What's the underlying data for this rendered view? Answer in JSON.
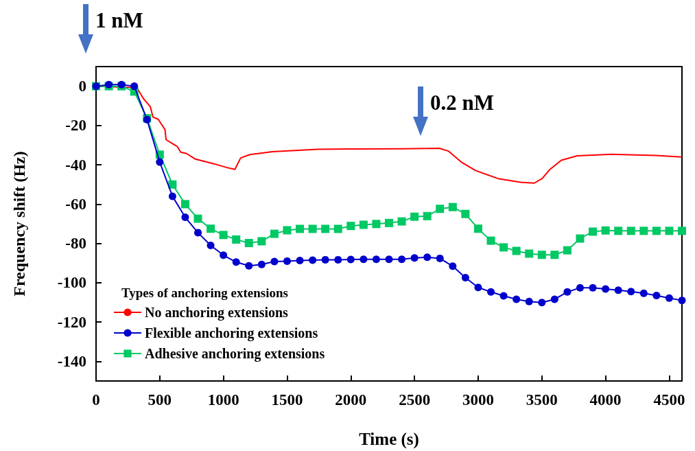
{
  "chart_data": {
    "type": "line",
    "xlabel": "Time (s)",
    "ylabel": "Frequency shift (Hz)",
    "legend_title": "Types of anchoring extensions",
    "legend": "bottom left",
    "xlim": [
      0,
      4600
    ],
    "xticks": [
      0,
      500,
      1000,
      1500,
      2000,
      2500,
      3000,
      3500,
      4000,
      4500
    ],
    "ylim": [
      -150,
      10
    ],
    "yticks": [
      -140,
      -120,
      -100,
      -80,
      -60,
      -40,
      -20,
      0
    ],
    "annotations": [
      "1 nM",
      "0.2 nM"
    ],
    "series": [
      {
        "name": "No anchoring extensions",
        "color": "#ff0000",
        "marker": "none",
        "x": [
          0,
          200,
          319,
          372,
          426,
          447,
          488,
          541,
          550,
          638,
          665,
          709,
          780,
          922,
          1028,
          1090,
          1135,
          1206,
          1383,
          1738,
          2021,
          2400,
          2695,
          2766,
          2872,
          2979,
          3156,
          3333,
          3440,
          3502,
          3564,
          3652,
          3777,
          4043,
          4397,
          4600
        ],
        "values": [
          0,
          -0.5,
          -0.6,
          -6.3,
          -10.4,
          -15.7,
          -16.8,
          -22,
          -27.2,
          -30.7,
          -33.6,
          -34.2,
          -37.1,
          -39.4,
          -41.4,
          -42.3,
          -36.5,
          -34.8,
          -33.3,
          -32.1,
          -31.9,
          -31.8,
          -31.6,
          -33,
          -38.8,
          -42.9,
          -47,
          -48.9,
          -49.3,
          -47,
          -42.3,
          -37.7,
          -35.4,
          -34.6,
          -35.2,
          -36
        ]
      },
      {
        "name": "Flexible anchoring extensions",
        "color": "#0000cc",
        "marker": "circle",
        "x": [
          0,
          100,
          200,
          300,
          400,
          500,
          600,
          700,
          800,
          900,
          1000,
          1100,
          1200,
          1300,
          1400,
          1500,
          1600,
          1700,
          1800,
          1900,
          2000,
          2100,
          2200,
          2300,
          2400,
          2500,
          2600,
          2700,
          2800,
          2900,
          3000,
          3100,
          3200,
          3300,
          3400,
          3500,
          3600,
          3700,
          3800,
          3900,
          4000,
          4100,
          4200,
          4300,
          4400,
          4500,
          4600
        ],
        "values": [
          0,
          0.8,
          0.8,
          0,
          -17,
          -38.6,
          -56,
          -66.7,
          -74.5,
          -81,
          -86,
          -89.5,
          -91.4,
          -90.7,
          -89.2,
          -89,
          -88.7,
          -88.5,
          -88.3,
          -88.3,
          -88.2,
          -88.1,
          -88.1,
          -88.1,
          -88.1,
          -87.4,
          -87,
          -87.6,
          -91.6,
          -97.4,
          -102.4,
          -104.7,
          -106.7,
          -108.4,
          -109.6,
          -110.1,
          -108.4,
          -104.7,
          -102.6,
          -102.6,
          -103.2,
          -103.8,
          -104.5,
          -105.4,
          -106.5,
          -107.8,
          -109
        ]
      },
      {
        "name": "Adhesive anchoring extensions",
        "color": "#00c864",
        "marker": "square",
        "x": [
          0,
          100,
          200,
          300,
          400,
          500,
          600,
          700,
          800,
          900,
          1000,
          1100,
          1200,
          1300,
          1400,
          1500,
          1600,
          1700,
          1800,
          1900,
          2000,
          2100,
          2200,
          2300,
          2400,
          2500,
          2600,
          2700,
          2800,
          2900,
          3000,
          3100,
          3200,
          3300,
          3400,
          3500,
          3600,
          3700,
          3800,
          3900,
          4000,
          4100,
          4200,
          4300,
          4400,
          4500,
          4600
        ],
        "values": [
          0,
          0,
          0,
          -2.7,
          -16.3,
          -34.8,
          -50,
          -60,
          -67.4,
          -72.5,
          -75.7,
          -78,
          -79.8,
          -78.9,
          -75.1,
          -73.3,
          -72.6,
          -72.6,
          -72.6,
          -72.6,
          -71.1,
          -70.5,
          -70.1,
          -69.6,
          -68.8,
          -66.4,
          -66.1,
          -62.4,
          -61.5,
          -65,
          -72.5,
          -78.6,
          -82,
          -83.8,
          -85.2,
          -85.8,
          -85.8,
          -83.5,
          -77.5,
          -74,
          -73.4,
          -73.6,
          -73.6,
          -73.6,
          -73.6,
          -73.6,
          -73.6
        ]
      }
    ]
  }
}
